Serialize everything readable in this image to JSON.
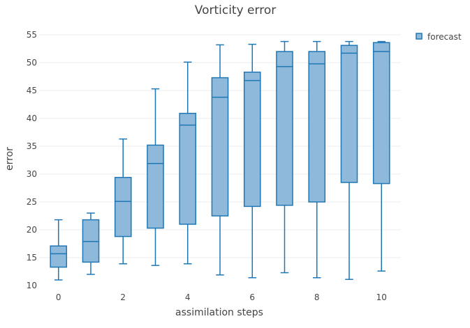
{
  "chart_data": {
    "type": "box",
    "title": "Vorticity error",
    "xlabel": "assimilation steps",
    "ylabel": "error",
    "xlim": [
      -0.6,
      10.6
    ],
    "ylim": [
      10,
      56
    ],
    "x_ticks": [
      0,
      2,
      4,
      6,
      8,
      10
    ],
    "y_ticks": [
      10,
      15,
      20,
      25,
      30,
      35,
      40,
      45,
      50,
      55
    ],
    "grid": true,
    "legend_position": "top-right",
    "colors": {
      "fill": "#8eb9da",
      "line": "#1f77b4"
    },
    "series": [
      {
        "name": "forecast",
        "boxes": [
          {
            "x": 0,
            "min": 11.0,
            "q1": 13.3,
            "median": 15.7,
            "q3": 17.1,
            "max": 21.8
          },
          {
            "x": 1,
            "min": 12.0,
            "q1": 14.2,
            "median": 17.9,
            "q3": 21.8,
            "max": 23.0
          },
          {
            "x": 2,
            "min": 13.9,
            "q1": 18.8,
            "median": 25.1,
            "q3": 29.4,
            "max": 36.3
          },
          {
            "x": 3,
            "min": 13.6,
            "q1": 20.3,
            "median": 31.9,
            "q3": 35.2,
            "max": 45.3
          },
          {
            "x": 4,
            "min": 13.9,
            "q1": 21.0,
            "median": 38.8,
            "q3": 40.9,
            "max": 50.1
          },
          {
            "x": 5,
            "min": 11.9,
            "q1": 22.5,
            "median": 43.8,
            "q3": 47.3,
            "max": 53.2
          },
          {
            "x": 6,
            "min": 11.4,
            "q1": 24.2,
            "median": 46.8,
            "q3": 48.3,
            "max": 53.3
          },
          {
            "x": 7,
            "min": 12.3,
            "q1": 24.4,
            "median": 49.3,
            "q3": 52.0,
            "max": 53.8
          },
          {
            "x": 8,
            "min": 11.4,
            "q1": 25.0,
            "median": 49.8,
            "q3": 52.0,
            "max": 53.8
          },
          {
            "x": 9,
            "min": 11.1,
            "q1": 28.5,
            "median": 51.7,
            "q3": 53.1,
            "max": 53.8
          },
          {
            "x": 10,
            "min": 12.6,
            "q1": 28.3,
            "median": 52.0,
            "q3": 53.6,
            "max": 53.8
          }
        ]
      }
    ]
  }
}
